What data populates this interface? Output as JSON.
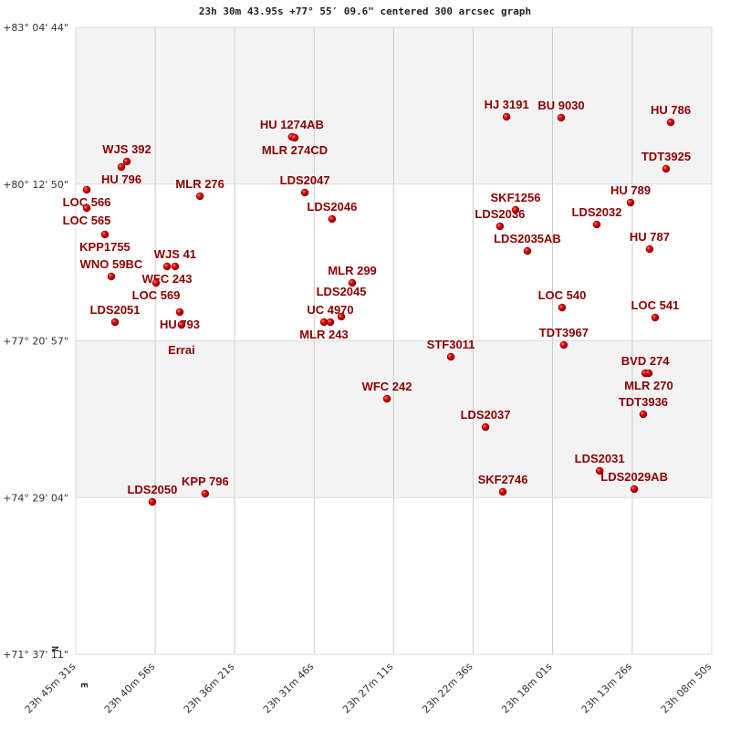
{
  "chart_data": {
    "type": "scatter",
    "title": "23h 30m 43.95s +77° 55′ 09.6\" centered 300 arcsec graph",
    "x_units": "RA seconds after 23h 00m 00s (increasing to the left)",
    "y_units": "Declination degrees",
    "xlim": [
      2731,
      530
    ],
    "ylim": [
      71.6197,
      83.0789
    ],
    "x_ticks": [
      2731,
      2456,
      2181,
      1906,
      1631,
      1356,
      1081,
      805,
      530
    ],
    "x_tick_labels": [
      "23h 45m 31s",
      "23h 40m 56s",
      "23h 36m 21s",
      "23h 31m 46s",
      "23h 27m 11s",
      "23h 22m 36s",
      "23h 18m 01s",
      "23h 13m 26s",
      "23h 08m 50s"
    ],
    "y_ticks": [
      83.0789,
      80.2139,
      77.3492,
      74.4844,
      71.6197
    ],
    "y_tick_labels": [
      "+83° 04' 44\"",
      "+80° 12' 50\"",
      "+77° 20' 57\"",
      "+74° 29' 04\"",
      "+71° 37' 11\""
    ],
    "compass": {
      "north": "N",
      "east": "E"
    },
    "grid": true,
    "marker_color": "#dd0000",
    "label_color": "#8b0000",
    "points": [
      {
        "name": "WJS 392",
        "ra": 2554,
        "dec": 80.627
      },
      {
        "name": "HU  796",
        "ra": 2573,
        "dec": 80.527
      },
      {
        "name": "LOC 566",
        "ra": 2693,
        "dec": 80.11
      },
      {
        "name": "LOC 565",
        "ra": 2693,
        "dec": 79.776
      },
      {
        "name": "KPP1755",
        "ra": 2630,
        "dec": 79.293
      },
      {
        "name": "WNO  59BC",
        "ra": 2608,
        "dec": 78.525
      },
      {
        "name": "WFC 243",
        "ra": 2415,
        "dec": 78.709
      },
      {
        "name": "WJS 41",
        "ra": 2387,
        "dec": 78.709
      },
      {
        "name": "LOC 569",
        "ra": 2453,
        "dec": 78.408
      },
      {
        "name": "MLR 276",
        "ra": 2301,
        "dec": 79.993
      },
      {
        "name": "LDS2051",
        "ra": 2595,
        "dec": 77.691
      },
      {
        "name": "HU  793",
        "ra": 2371,
        "dec": 77.875
      },
      {
        "name": "Errai",
        "ra": 2365,
        "dec": 77.641
      },
      {
        "name": "HU 1274AB",
        "ra": 1983,
        "dec": 81.077
      },
      {
        "name": "MLR 274CD",
        "ra": 1973,
        "dec": 81.061
      },
      {
        "name": "LDS2047",
        "ra": 1938,
        "dec": 80.06
      },
      {
        "name": "LDS2046",
        "ra": 1844,
        "dec": 79.576
      },
      {
        "name": "MLR 299",
        "ra": 1774,
        "dec": 78.408
      },
      {
        "name": "UC 4970",
        "ra": 1850,
        "dec": 77.691
      },
      {
        "name": "MLR 243",
        "ra": 1872,
        "dec": 77.691
      },
      {
        "name": "LDS2045",
        "ra": 1812,
        "dec": 77.792
      },
      {
        "name": "HJ 3191",
        "ra": 1240,
        "dec": 81.444
      },
      {
        "name": "BU 9030",
        "ra": 1051,
        "dec": 81.428
      },
      {
        "name": "HU  786",
        "ra": 672,
        "dec": 81.344
      },
      {
        "name": "TDT3925",
        "ra": 688,
        "dec": 80.494
      },
      {
        "name": "HU  789",
        "ra": 811,
        "dec": 79.876
      },
      {
        "name": "SKF1256",
        "ra": 1209,
        "dec": 79.743
      },
      {
        "name": "LDS2036",
        "ra": 1263,
        "dec": 79.443
      },
      {
        "name": "LDS2035AB",
        "ra": 1168,
        "dec": 78.992
      },
      {
        "name": "LDS2032",
        "ra": 928,
        "dec": 79.476
      },
      {
        "name": "HU  787",
        "ra": 745,
        "dec": 79.026
      },
      {
        "name": "LOC 540",
        "ra": 1048,
        "dec": 77.958
      },
      {
        "name": "LOC 541",
        "ra": 726,
        "dec": 77.775
      },
      {
        "name": "TDT3967",
        "ra": 1042,
        "dec": 77.274
      },
      {
        "name": "STF3011",
        "ra": 1433,
        "dec": 77.057
      },
      {
        "name": "BVD 274",
        "ra": 760,
        "dec": 76.757
      },
      {
        "name": "MLR 270",
        "ra": 748,
        "dec": 76.757
      },
      {
        "name": "TDT3936",
        "ra": 767,
        "dec": 76.007
      },
      {
        "name": "WFC 242",
        "ra": 1654,
        "dec": 76.29
      },
      {
        "name": "LDS2037",
        "ra": 1313,
        "dec": 75.773
      },
      {
        "name": "LDS2031",
        "ra": 918,
        "dec": 74.972
      },
      {
        "name": "LDS2029AB",
        "ra": 798,
        "dec": 74.639
      },
      {
        "name": "SKF2746",
        "ra": 1253,
        "dec": 74.589
      },
      {
        "name": "LDS2050",
        "ra": 2466,
        "dec": 74.405
      },
      {
        "name": "KPP 796",
        "ra": 2283,
        "dec": 74.555
      }
    ]
  }
}
